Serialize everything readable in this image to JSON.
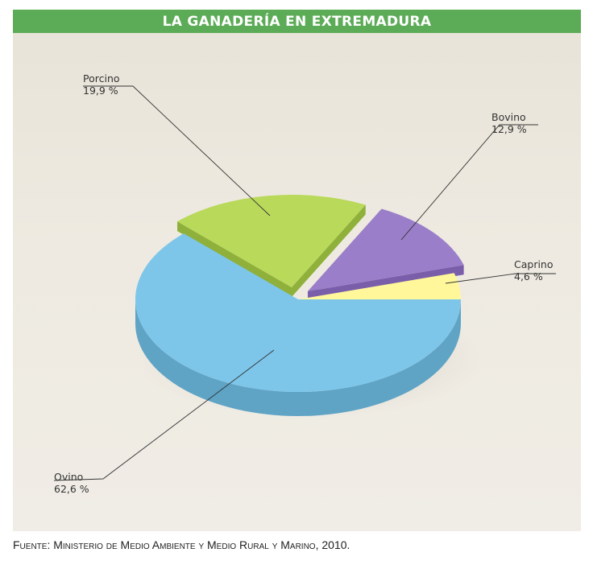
{
  "title": "LA GANADERÍA EN EXTREMADURA",
  "source": "Fuente: Ministerio de Medio Ambiente y Medio Rural y Marino, 2010.",
  "chart_data": {
    "type": "pie",
    "title": "LA GANADERÍA EN EXTREMADURA",
    "slices": [
      {
        "label": "Ovino",
        "value": 62.6,
        "value_text": "62,6 %",
        "color": "#7dc6ea",
        "side_color": "#5fa3c5"
      },
      {
        "label": "Porcino",
        "value": 19.9,
        "value_text": "19,9 %",
        "color": "#b9d95a",
        "side_color": "#8fb03b"
      },
      {
        "label": "Bovino",
        "value": 12.9,
        "value_text": "12,9 %",
        "color": "#9b7ec9",
        "side_color": "#7a5eaa"
      },
      {
        "label": "Caprino",
        "value": 4.6,
        "value_text": "4,6 %",
        "color": "#fff79a",
        "side_color": "#d8cf6a"
      }
    ],
    "style": "3d-exploded",
    "legend": "none"
  }
}
